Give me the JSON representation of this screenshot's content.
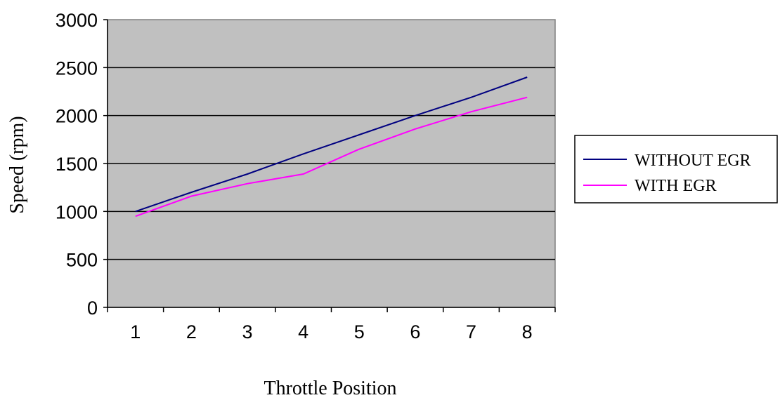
{
  "chart_data": {
    "type": "line",
    "title": "",
    "xlabel": "Throttle Position",
    "ylabel": "Speed (rpm)",
    "categories": [
      "1",
      "2",
      "3",
      "4",
      "5",
      "6",
      "7",
      "8"
    ],
    "ylim": [
      0,
      3000
    ],
    "yticks": [
      "0",
      "500",
      "1000",
      "1500",
      "2000",
      "2500",
      "3000"
    ],
    "grid": "horizontal",
    "legend_position": "right",
    "plot_background": "#c0c0c0",
    "series": [
      {
        "name": "WITHOUT EGR",
        "color": "#000080",
        "values": [
          1000,
          1200,
          1390,
          1600,
          1800,
          2000,
          2190,
          2400
        ]
      },
      {
        "name": "WITH EGR",
        "color": "#ff00ff",
        "values": [
          950,
          1160,
          1290,
          1390,
          1650,
          1860,
          2040,
          2190
        ]
      }
    ]
  }
}
